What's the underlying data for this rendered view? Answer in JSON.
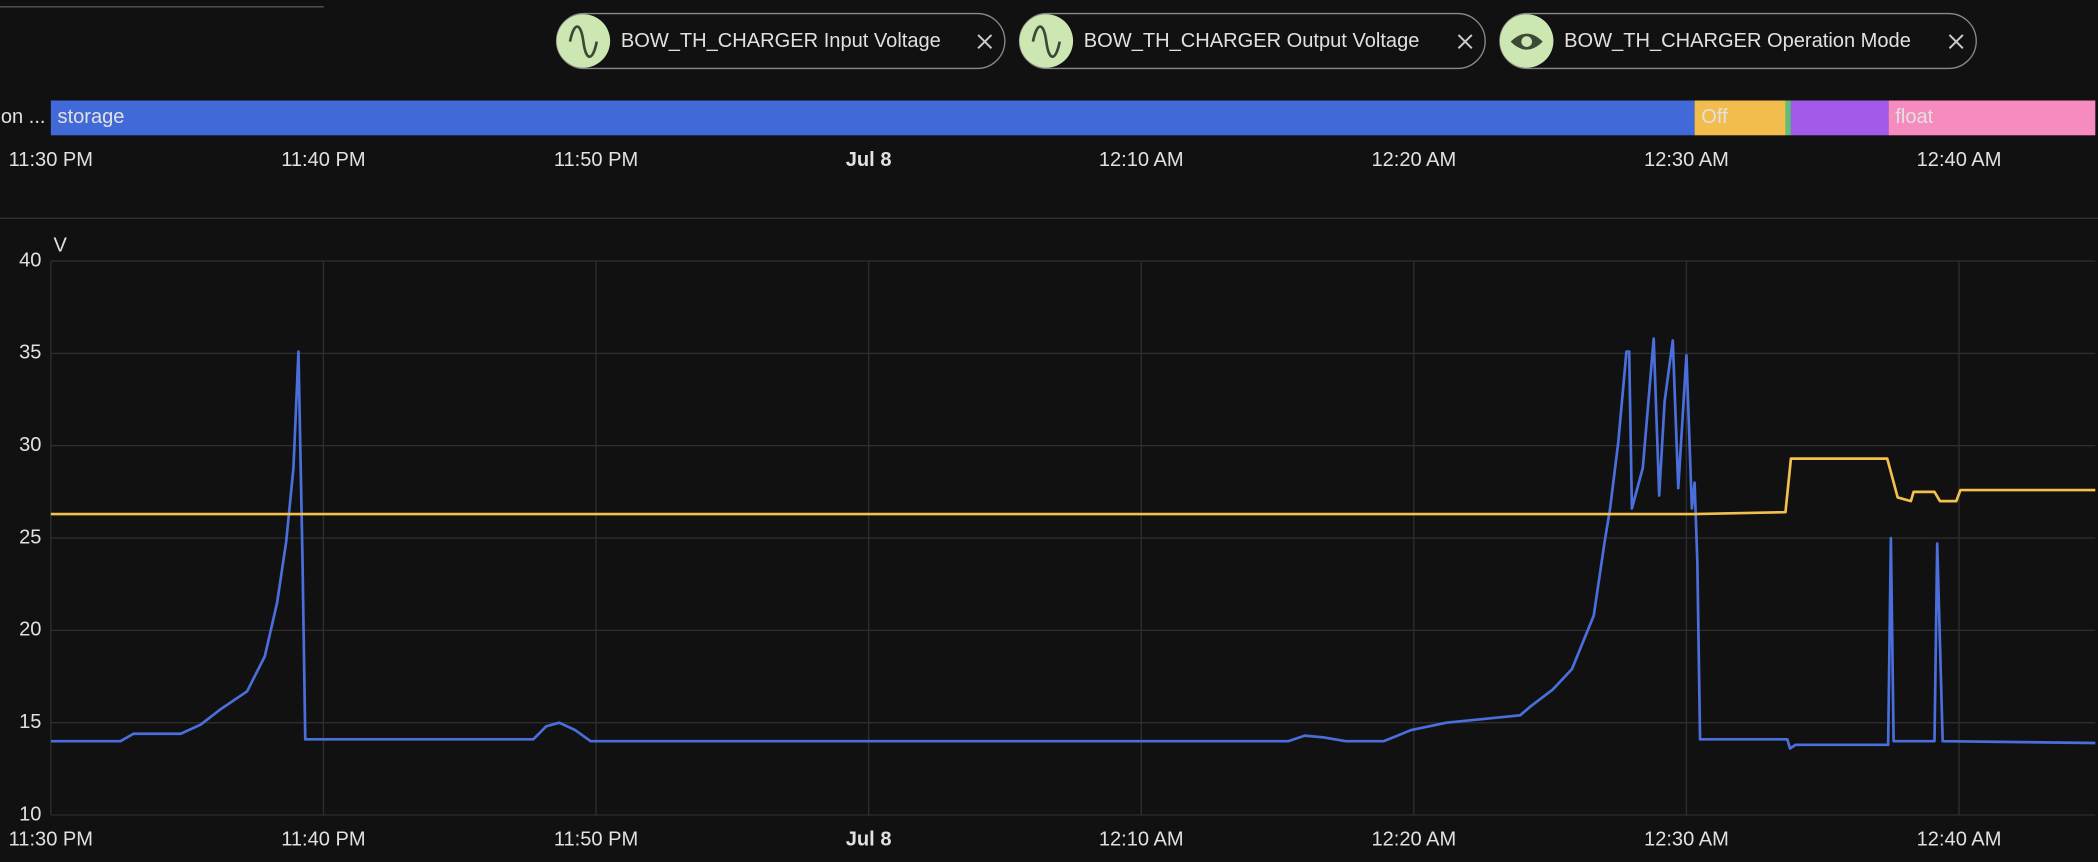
{
  "chart_data": [
    {
      "type": "timeline",
      "title": "BOW_TH_CHARGER Operation Mode",
      "row_label": "on ...",
      "segments": [
        {
          "start": "23:30:00",
          "end": "00:30:18",
          "label": "storage",
          "color": "#4269d8"
        },
        {
          "start": "00:30:18",
          "end": "00:33:38",
          "label": "Off",
          "color": "#f2bd4c"
        },
        {
          "start": "00:33:38",
          "end": "00:33:50",
          "label": null,
          "color": "#5fbf7a"
        },
        {
          "start": "00:33:50",
          "end": "00:37:25",
          "label": null,
          "color": "#a35ae8"
        },
        {
          "start": "00:37:25",
          "end": "00:45:00",
          "label": "float",
          "color": "#f58bbf"
        }
      ],
      "xlim": [
        "23:30:00",
        "00:45:00"
      ],
      "xticks": [
        {
          "value": "23:30",
          "label": "11:30 PM"
        },
        {
          "value": "23:40",
          "label": "11:40 PM"
        },
        {
          "value": "23:50",
          "label": "11:50 PM"
        },
        {
          "value": "00:00",
          "label": "Jul 8"
        },
        {
          "value": "00:10",
          "label": "12:10 AM"
        },
        {
          "value": "00:20",
          "label": "12:20 AM"
        },
        {
          "value": "00:30",
          "label": "12:30 AM"
        },
        {
          "value": "00:40",
          "label": "12:40 AM"
        }
      ]
    },
    {
      "type": "line",
      "y_label": "V",
      "grid": true,
      "xlim": [
        "23:30:00",
        "00:45:00"
      ],
      "ylim": [
        10,
        40
      ],
      "yticks": [
        10,
        15,
        20,
        25,
        30,
        35,
        40
      ],
      "xticks": [
        {
          "value": "23:30",
          "label": "11:30 PM"
        },
        {
          "value": "23:40",
          "label": "11:40 PM"
        },
        {
          "value": "23:50",
          "label": "11:50 PM"
        },
        {
          "value": "00:00",
          "label": "Jul 8"
        },
        {
          "value": "00:10",
          "label": "12:10 AM"
        },
        {
          "value": "00:20",
          "label": "12:20 AM"
        },
        {
          "value": "00:30",
          "label": "12:30 AM"
        },
        {
          "value": "00:40",
          "label": "12:40 AM"
        }
      ],
      "series": [
        {
          "name": "BOW_TH_CHARGER Input Voltage",
          "color": "#4a6fdc",
          "x": [
            "23:30:00",
            "23:32:33",
            "23:33:02",
            "23:34:46",
            "23:35:30",
            "23:36:12",
            "23:37:12",
            "23:37:51",
            "23:38:18",
            "23:38:38",
            "23:38:54",
            "23:39:05",
            "23:39:14",
            "23:39:20",
            "23:42:52",
            "23:47:42",
            "23:48:10",
            "23:48:39",
            "23:49:14",
            "23:49:48",
            "23:57:36",
            "00:15:24",
            "00:16:00",
            "00:16:42",
            "00:17:30",
            "00:18:54",
            "00:19:54",
            "00:21:12",
            "00:23:54",
            "00:24:18",
            "00:25:06",
            "00:25:48",
            "00:26:36",
            "00:27:00",
            "00:27:12",
            "00:27:30",
            "00:27:48",
            "00:27:54",
            "00:28:00",
            "00:28:24",
            "00:28:48",
            "00:29:00",
            "00:29:12",
            "00:29:30",
            "00:29:42",
            "00:30:00",
            "00:30:12",
            "00:30:18",
            "00:30:24",
            "00:30:30",
            "00:33:42",
            "00:33:48",
            "00:34:00",
            "00:37:24",
            "00:37:30",
            "00:37:36",
            "00:39:06",
            "00:39:12",
            "00:39:24",
            "00:45:00"
          ],
          "values": [
            14.0,
            14.0,
            14.4,
            14.4,
            14.9,
            15.7,
            16.7,
            18.6,
            21.5,
            24.8,
            28.8,
            35.1,
            23.7,
            14.1,
            14.1,
            14.1,
            14.8,
            15.0,
            14.6,
            14.0,
            14.0,
            14.0,
            14.3,
            14.2,
            14.0,
            14.0,
            14.6,
            15.0,
            15.4,
            15.9,
            16.8,
            17.9,
            20.8,
            24.8,
            26.6,
            30.2,
            35.1,
            35.1,
            26.6,
            28.8,
            35.8,
            27.3,
            32.4,
            35.7,
            27.7,
            34.9,
            26.6,
            28.0,
            23.7,
            14.1,
            14.1,
            13.6,
            13.8,
            13.8,
            25.0,
            14.0,
            14.0,
            24.7,
            14.0,
            13.9
          ]
        },
        {
          "name": "BOW_TH_CHARGER Output Voltage",
          "color": "#f4c04c",
          "x": [
            "23:30:00",
            "00:30:18",
            "00:33:38",
            "00:33:50",
            "00:37:22",
            "00:37:45",
            "00:38:14",
            "00:38:20",
            "00:39:06",
            "00:39:18",
            "00:39:54",
            "00:40:03",
            "00:45:00"
          ],
          "values": [
            26.3,
            26.3,
            26.4,
            29.3,
            29.3,
            27.2,
            27.0,
            27.5,
            27.5,
            27.0,
            27.0,
            27.6,
            27.6
          ]
        }
      ]
    }
  ]
}
